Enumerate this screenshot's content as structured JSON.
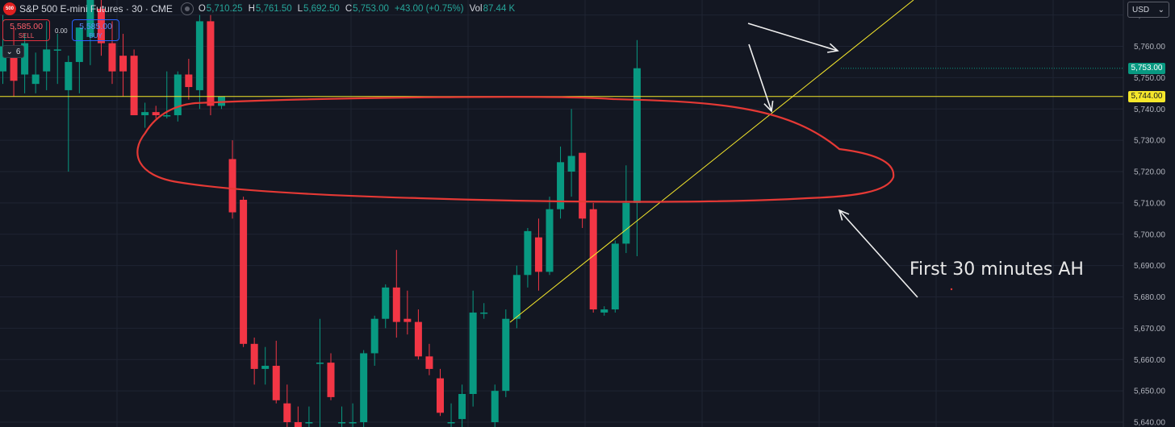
{
  "header": {
    "logo_text": "500",
    "symbol": "S&P 500 E-mini Futures · 30 · CME",
    "ohlc": [
      {
        "key": "O",
        "value": "5,710.25"
      },
      {
        "key": "H",
        "value": "5,761.50"
      },
      {
        "key": "L",
        "value": "5,692.50"
      },
      {
        "key": "C",
        "value": "5,753.00"
      }
    ],
    "change": "+43.00 (+0.75%)",
    "vol_label": "Vol",
    "vol_value": "87.44 K"
  },
  "trade": {
    "sell_price": "5,585.00",
    "sell_label": "SELL",
    "buy_price": "5,585.00",
    "buy_label": "BUY",
    "spread": "0.00",
    "qty": "6"
  },
  "currency": "USD",
  "annotation_text": "First 30 minutes AH",
  "price_tags": {
    "last": "5,753.00",
    "level": "5,744.00"
  },
  "colors": {
    "up": "#089981",
    "down": "#f23645",
    "level_line": "#f5e72b",
    "marker": "#e53935",
    "background": "#131722"
  },
  "chart_data": {
    "type": "candlestick",
    "title": "S&P 500 E-mini Futures · 30 · CME",
    "ylim": [
      5635,
      5775
    ],
    "y_ticks": [
      5640,
      5650,
      5660,
      5670,
      5680,
      5690,
      5700,
      5710,
      5720,
      5730,
      5740,
      5750,
      5760,
      5770
    ],
    "y_tick_labels": [
      "5,640.00",
      "5,650.00",
      "5,660.00",
      "5,670.00",
      "5,680.00",
      "5,690.00",
      "5,700.00",
      "5,710.00",
      "5,720.00",
      "5,730.00",
      "5,740.00",
      "5,750.00",
      "5,760.00",
      "5,770.00"
    ],
    "horizontal_line": 5744,
    "last_price": 5753,
    "candles": [
      {
        "o": 5752,
        "h": 5770,
        "l": 5748,
        "c": 5760
      },
      {
        "o": 5760,
        "h": 5766,
        "l": 5744,
        "c": 5749
      },
      {
        "o": 5751,
        "h": 5764,
        "l": 5745,
        "c": 5761
      },
      {
        "o": 5748,
        "h": 5758,
        "l": 5745,
        "c": 5751
      },
      {
        "o": 5752,
        "h": 5768,
        "l": 5746,
        "c": 5759
      },
      {
        "o": 5759,
        "h": 5764,
        "l": 5748,
        "c": 5759
      },
      {
        "o": 5746,
        "h": 5757,
        "l": 5720,
        "c": 5755
      },
      {
        "o": 5755,
        "h": 5766,
        "l": 5745,
        "c": 5766
      },
      {
        "o": 5763,
        "h": 5778,
        "l": 5754,
        "c": 5777
      },
      {
        "o": 5772,
        "h": 5777,
        "l": 5757,
        "c": 5761
      },
      {
        "o": 5761,
        "h": 5768,
        "l": 5748,
        "c": 5752
      },
      {
        "o": 5757,
        "h": 5764,
        "l": 5744,
        "c": 5752
      },
      {
        "o": 5757,
        "h": 5759,
        "l": 5738,
        "c": 5738
      },
      {
        "o": 5738,
        "h": 5742,
        "l": 5734,
        "c": 5739
      },
      {
        "o": 5739,
        "h": 5741,
        "l": 5737,
        "c": 5738
      },
      {
        "o": 5738,
        "h": 5752,
        "l": 5737,
        "c": 5738
      },
      {
        "o": 5738,
        "h": 5752,
        "l": 5736,
        "c": 5751
      },
      {
        "o": 5751,
        "h": 5756,
        "l": 5743,
        "c": 5747
      },
      {
        "o": 5746,
        "h": 5770,
        "l": 5740,
        "c": 5768
      },
      {
        "o": 5768,
        "h": 5770,
        "l": 5738,
        "c": 5741
      },
      {
        "o": 5741,
        "h": 5744,
        "l": 5740,
        "c": 5744
      },
      {
        "o": 5724,
        "h": 5730,
        "l": 5705,
        "c": 5707
      },
      {
        "o": 5711,
        "h": 5712,
        "l": 5664,
        "c": 5665
      },
      {
        "o": 5665,
        "h": 5667,
        "l": 5652,
        "c": 5657
      },
      {
        "o": 5657,
        "h": 5664,
        "l": 5652,
        "c": 5658
      },
      {
        "o": 5658,
        "h": 5666,
        "l": 5646,
        "c": 5647
      },
      {
        "o": 5646,
        "h": 5652,
        "l": 5635,
        "c": 5640
      },
      {
        "o": 5640,
        "h": 5645,
        "l": 5632,
        "c": 5632
      },
      {
        "o": 5640,
        "h": 5645,
        "l": 5632,
        "c": 5640
      },
      {
        "o": 5659,
        "h": 5673,
        "l": 5635,
        "c": 5659
      },
      {
        "o": 5659,
        "h": 5662,
        "l": 5647,
        "c": 5648
      },
      {
        "o": 5640,
        "h": 5645,
        "l": 5632,
        "c": 5640
      },
      {
        "o": 5640,
        "h": 5646,
        "l": 5632,
        "c": 5640
      },
      {
        "o": 5640,
        "h": 5663,
        "l": 5635,
        "c": 5662
      },
      {
        "o": 5662,
        "h": 5674,
        "l": 5658,
        "c": 5673
      },
      {
        "o": 5673,
        "h": 5684,
        "l": 5670,
        "c": 5683
      },
      {
        "o": 5683,
        "h": 5695,
        "l": 5667,
        "c": 5672
      },
      {
        "o": 5673,
        "h": 5682,
        "l": 5668,
        "c": 5672
      },
      {
        "o": 5672,
        "h": 5676,
        "l": 5660,
        "c": 5661
      },
      {
        "o": 5661,
        "h": 5665,
        "l": 5655,
        "c": 5657
      },
      {
        "o": 5654,
        "h": 5657,
        "l": 5642,
        "c": 5643
      },
      {
        "o": 5640,
        "h": 5646,
        "l": 5632,
        "c": 5640
      },
      {
        "o": 5641,
        "h": 5652,
        "l": 5636,
        "c": 5649
      },
      {
        "o": 5649,
        "h": 5682,
        "l": 5645,
        "c": 5675
      },
      {
        "o": 5675,
        "h": 5678,
        "l": 5673,
        "c": 5675
      },
      {
        "o": 5640,
        "h": 5652,
        "l": 5632,
        "c": 5650
      },
      {
        "o": 5650,
        "h": 5676,
        "l": 5648,
        "c": 5673
      },
      {
        "o": 5673,
        "h": 5690,
        "l": 5670,
        "c": 5687
      },
      {
        "o": 5687,
        "h": 5702,
        "l": 5683,
        "c": 5701
      },
      {
        "o": 5699,
        "h": 5705,
        "l": 5682,
        "c": 5688
      },
      {
        "o": 5688,
        "h": 5712,
        "l": 5687,
        "c": 5708
      },
      {
        "o": 5708,
        "h": 5728,
        "l": 5705,
        "c": 5723
      },
      {
        "o": 5720,
        "h": 5740,
        "l": 5712,
        "c": 5725
      },
      {
        "o": 5726,
        "h": 5726,
        "l": 5702,
        "c": 5705
      },
      {
        "o": 5708,
        "h": 5710,
        "l": 5675,
        "c": 5676
      },
      {
        "o": 5675,
        "h": 5677,
        "l": 5674,
        "c": 5676
      },
      {
        "o": 5676,
        "h": 5698,
        "l": 5675,
        "c": 5697
      },
      {
        "o": 5697,
        "h": 5722,
        "l": 5694,
        "c": 5710
      },
      {
        "o": 5710,
        "h": 5762,
        "l": 5693,
        "c": 5753
      }
    ]
  }
}
